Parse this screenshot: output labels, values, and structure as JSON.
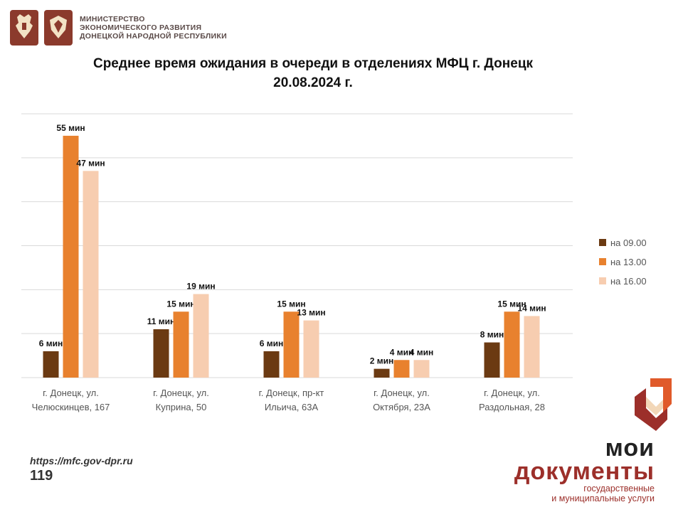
{
  "header": {
    "ministry_lines": [
      "МИНИСТЕРСТВО",
      "ЭКОНОМИЧЕСКОГО РАЗВИТИЯ",
      "ДОНЕЦКОЙ НАРОДНОЙ РЕСПУБЛИКИ"
    ]
  },
  "title": {
    "line1": "Среднее время ожидания в очереди в отделениях МФЦ г. Донецк",
    "line2": "20.08.2024 г."
  },
  "footer": {
    "url": "https://mfc.gov-dpr.ru",
    "page": "119"
  },
  "brand": {
    "line1": "мои",
    "line2": "документы",
    "line3": "государственные",
    "line4": "и муниципальные услуги"
  },
  "colors": {
    "accent": "#e8812e",
    "brand_red": "#9c2f2a"
  },
  "chart_data": {
    "type": "bar",
    "categories": [
      [
        "г. Донецк, ул.",
        "Челюскинцев, 167"
      ],
      [
        "г. Донецк, ул.",
        "Куприна, 50"
      ],
      [
        "г. Донецк, пр-кт",
        "Ильича, 63А"
      ],
      [
        "г. Донецк, ул.",
        "Октября, 23А"
      ],
      [
        "г. Донецк, ул.",
        "Раздольная, 28"
      ]
    ],
    "series": [
      {
        "name": "на 09.00",
        "color": "#6b3a12",
        "values": [
          6,
          11,
          6,
          2,
          8
        ],
        "labels": [
          "6 мин",
          "11 мин",
          "6 мин",
          "2 мин",
          "8 мин"
        ]
      },
      {
        "name": "на 13.00",
        "color": "#e8812e",
        "values": [
          55,
          15,
          15,
          4,
          15
        ],
        "labels": [
          "55 мин",
          "15 мин",
          "15 мин",
          "4 мин",
          "15 мин"
        ]
      },
      {
        "name": "на 16.00",
        "color": "#f7cdb0",
        "values": [
          47,
          19,
          13,
          4,
          14
        ],
        "labels": [
          "47 мин",
          "19 мин",
          "13 мин",
          "4 мин",
          "14 мин"
        ]
      }
    ],
    "ylim": [
      0,
      60
    ],
    "gridlines": [
      0,
      10,
      20,
      30,
      40,
      50,
      60
    ],
    "grid": true,
    "legend": "right"
  }
}
